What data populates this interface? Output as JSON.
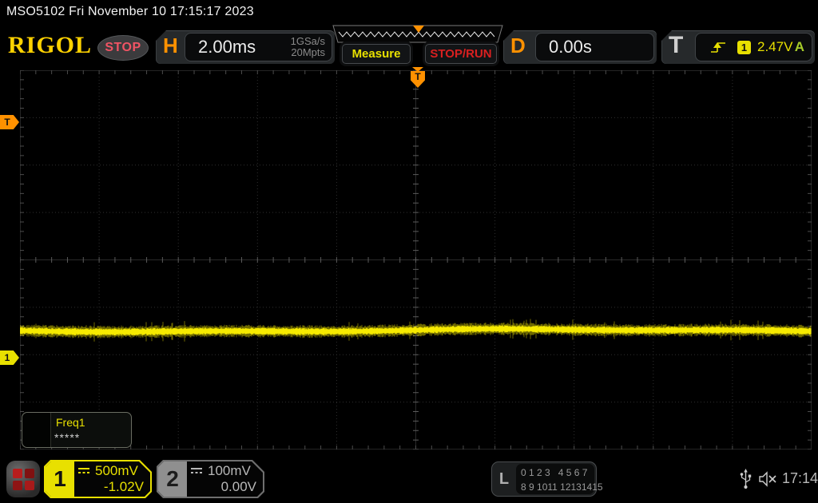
{
  "titlebar": {
    "text": "MSO5102  Fri November 10 17:15:17 2023"
  },
  "toolbar": {
    "logo": "RIGOL",
    "run_state": "STOP",
    "h_label": "H",
    "timebase": "2.00ms",
    "sample_rate": "1GSa/s",
    "mem_depth": "20Mpts",
    "measure_label": "Measure",
    "stoprun_label": "STOP/RUN",
    "d_label": "D",
    "delay": "0.00s",
    "t_label": "T",
    "trigger_source": "1",
    "trigger_level": "2.47V",
    "trigger_mode": "A"
  },
  "markers": {
    "trigger_pos": "T",
    "trigger_level": "T",
    "channel1": "1"
  },
  "measurement": {
    "name": "Freq1",
    "value": "*****"
  },
  "channels": [
    {
      "id": "1",
      "scale": "500mV",
      "offset": "-1.02V"
    },
    {
      "id": "2",
      "scale": "100mV",
      "offset": "0.00V"
    }
  ],
  "logic": {
    "label": "L",
    "row1": "0 1 2 3   4 5 6 7",
    "row2": "8 9 1011 12131415"
  },
  "status": {
    "time": "17:14"
  },
  "icons": {
    "slope": "rising-edge-trigger-icon",
    "coupling": "dc-coupling-icon",
    "usb": "usb-icon",
    "speaker": "speaker-muted-icon",
    "grid": "quick-menu-icon"
  },
  "colors": {
    "accent_yellow": "#e8e000",
    "trace_yellow": "#f6ea00",
    "accent_orange": "#ff9100",
    "run_red": "#d82020",
    "stop_pink": "#f05464",
    "trig_green": "#a6cc2a",
    "grid_dot": "#2f2f2f",
    "tick": "#4c4c4c",
    "center_tick": "#5c5c5c"
  }
}
